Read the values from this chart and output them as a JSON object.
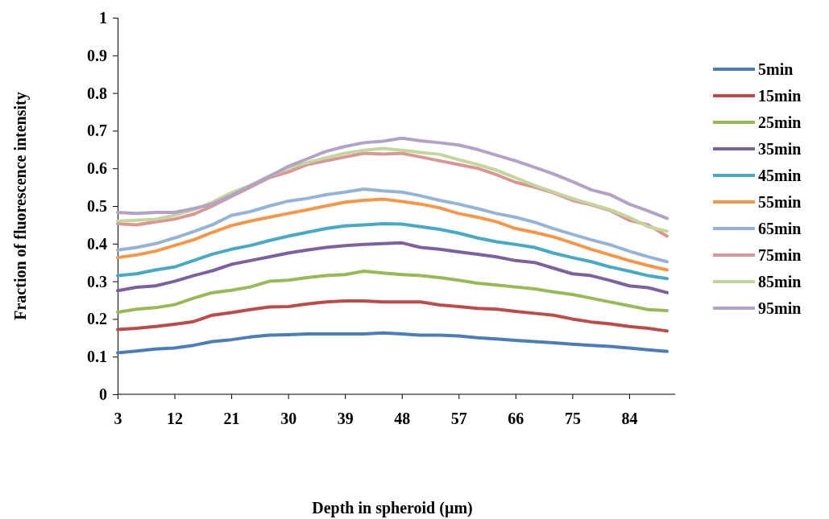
{
  "chart_data": {
    "type": "line",
    "xlabel": "Depth in spheroid (µm)",
    "ylabel": "Fraction of fluorescence intensity",
    "categories": [
      "3",
      null,
      null,
      "12",
      null,
      null,
      "21",
      null,
      null,
      "30",
      null,
      null,
      "39",
      null,
      null,
      "48",
      null,
      null,
      "57",
      null,
      null,
      "66",
      null,
      null,
      "75",
      null,
      null,
      "84",
      null,
      null
    ],
    "ylim": [
      0,
      1
    ],
    "yticks": [
      0,
      0.1,
      0.2,
      0.3,
      0.4,
      0.5,
      0.6,
      0.7,
      0.8,
      0.9,
      1
    ],
    "grid": false,
    "legend": "right",
    "marker": "none",
    "line_style": "solid",
    "series": [
      {
        "name": "5min",
        "color": "#4a7ebb",
        "values": [
          0.11,
          0.115,
          0.12,
          0.123,
          0.13,
          0.14,
          0.145,
          0.152,
          0.157,
          0.158,
          0.16,
          0.16,
          0.16,
          0.16,
          0.163,
          0.16,
          0.157,
          0.157,
          0.155,
          0.15,
          0.147,
          0.143,
          0.14,
          0.137,
          0.133,
          0.13,
          0.127,
          0.123,
          0.118,
          0.114
        ]
      },
      {
        "name": "15min",
        "color": "#be4b48",
        "values": [
          0.172,
          0.175,
          0.18,
          0.186,
          0.193,
          0.21,
          0.217,
          0.225,
          0.232,
          0.233,
          0.24,
          0.245,
          0.248,
          0.248,
          0.245,
          0.245,
          0.245,
          0.237,
          0.233,
          0.228,
          0.226,
          0.22,
          0.215,
          0.21,
          0.2,
          0.192,
          0.187,
          0.18,
          0.175,
          0.168
        ]
      },
      {
        "name": "25min",
        "color": "#98b954",
        "values": [
          0.218,
          0.226,
          0.23,
          0.238,
          0.255,
          0.27,
          0.276,
          0.285,
          0.3,
          0.303,
          0.31,
          0.315,
          0.318,
          0.327,
          0.322,
          0.318,
          0.315,
          0.31,
          0.303,
          0.295,
          0.29,
          0.285,
          0.28,
          0.272,
          0.265,
          0.255,
          0.245,
          0.235,
          0.225,
          0.222
        ]
      },
      {
        "name": "35min",
        "color": "#7d60a0",
        "values": [
          0.275,
          0.284,
          0.288,
          0.3,
          0.315,
          0.328,
          0.345,
          0.355,
          0.365,
          0.375,
          0.383,
          0.39,
          0.395,
          0.398,
          0.4,
          0.402,
          0.39,
          0.385,
          0.378,
          0.372,
          0.365,
          0.355,
          0.35,
          0.335,
          0.32,
          0.315,
          0.302,
          0.288,
          0.283,
          0.27
        ]
      },
      {
        "name": "45min",
        "color": "#46aac5",
        "values": [
          0.315,
          0.32,
          0.33,
          0.338,
          0.355,
          0.372,
          0.385,
          0.395,
          0.408,
          0.42,
          0.43,
          0.44,
          0.447,
          0.45,
          0.453,
          0.452,
          0.445,
          0.438,
          0.428,
          0.415,
          0.405,
          0.398,
          0.39,
          0.375,
          0.363,
          0.352,
          0.338,
          0.327,
          0.315,
          0.307
        ]
      },
      {
        "name": "55min",
        "color": "#f79646",
        "values": [
          0.363,
          0.37,
          0.38,
          0.395,
          0.41,
          0.43,
          0.448,
          0.46,
          0.47,
          0.48,
          0.49,
          0.5,
          0.51,
          0.515,
          0.518,
          0.512,
          0.505,
          0.495,
          0.48,
          0.47,
          0.458,
          0.44,
          0.43,
          0.418,
          0.402,
          0.385,
          0.37,
          0.355,
          0.342,
          0.33
        ]
      },
      {
        "name": "65min",
        "color": "#95b3d7",
        "values": [
          0.383,
          0.39,
          0.4,
          0.415,
          0.432,
          0.45,
          0.475,
          0.485,
          0.5,
          0.513,
          0.52,
          0.53,
          0.537,
          0.545,
          0.54,
          0.537,
          0.527,
          0.515,
          0.505,
          0.493,
          0.48,
          0.47,
          0.457,
          0.44,
          0.425,
          0.41,
          0.397,
          0.38,
          0.365,
          0.352
        ]
      },
      {
        "name": "75min",
        "color": "#d99694",
        "values": [
          0.453,
          0.45,
          0.458,
          0.465,
          0.478,
          0.5,
          0.525,
          0.55,
          0.575,
          0.59,
          0.61,
          0.62,
          0.63,
          0.64,
          0.638,
          0.64,
          0.63,
          0.62,
          0.61,
          0.6,
          0.583,
          0.563,
          0.55,
          0.535,
          0.515,
          0.503,
          0.488,
          0.462,
          0.45,
          0.42
        ]
      },
      {
        "name": "85min",
        "color": "#c3d69b",
        "values": [
          0.46,
          0.462,
          0.465,
          0.475,
          0.49,
          0.51,
          0.535,
          0.555,
          0.58,
          0.6,
          0.615,
          0.628,
          0.64,
          0.648,
          0.653,
          0.648,
          0.642,
          0.637,
          0.623,
          0.61,
          0.595,
          0.575,
          0.555,
          0.537,
          0.52,
          0.505,
          0.49,
          0.47,
          0.445,
          0.433
        ]
      },
      {
        "name": "95min",
        "color": "#b3a2c7",
        "values": [
          0.483,
          0.48,
          0.483,
          0.483,
          0.493,
          0.505,
          0.528,
          0.553,
          0.578,
          0.605,
          0.625,
          0.645,
          0.658,
          0.668,
          0.672,
          0.68,
          0.673,
          0.668,
          0.662,
          0.65,
          0.635,
          0.62,
          0.603,
          0.585,
          0.565,
          0.543,
          0.53,
          0.505,
          0.487,
          0.467
        ]
      }
    ]
  }
}
